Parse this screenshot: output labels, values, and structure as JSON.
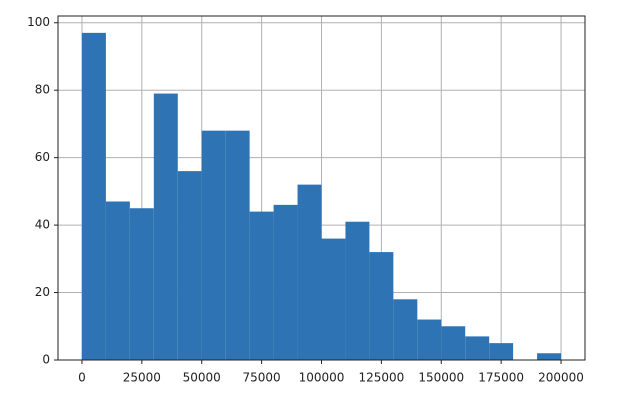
{
  "chart_data": {
    "type": "histogram",
    "bins": [
      0,
      10000,
      20000,
      30000,
      40000,
      50000,
      60000,
      70000,
      80000,
      90000,
      100000,
      110000,
      120000,
      130000,
      140000,
      150000,
      160000,
      170000,
      180000,
      190000,
      200000
    ],
    "counts": [
      97,
      47,
      45,
      79,
      56,
      68,
      68,
      44,
      46,
      52,
      36,
      41,
      32,
      18,
      12,
      10,
      7,
      5,
      0,
      2
    ],
    "color": "#2e74b4",
    "xlim": [
      -10000,
      210000
    ],
    "xticks": [
      0,
      25000,
      50000,
      75000,
      100000,
      125000,
      150000,
      175000,
      200000
    ],
    "ylim": [
      0,
      102
    ],
    "yticks": [
      0,
      20,
      40,
      60,
      80,
      100
    ],
    "grid": true
  }
}
